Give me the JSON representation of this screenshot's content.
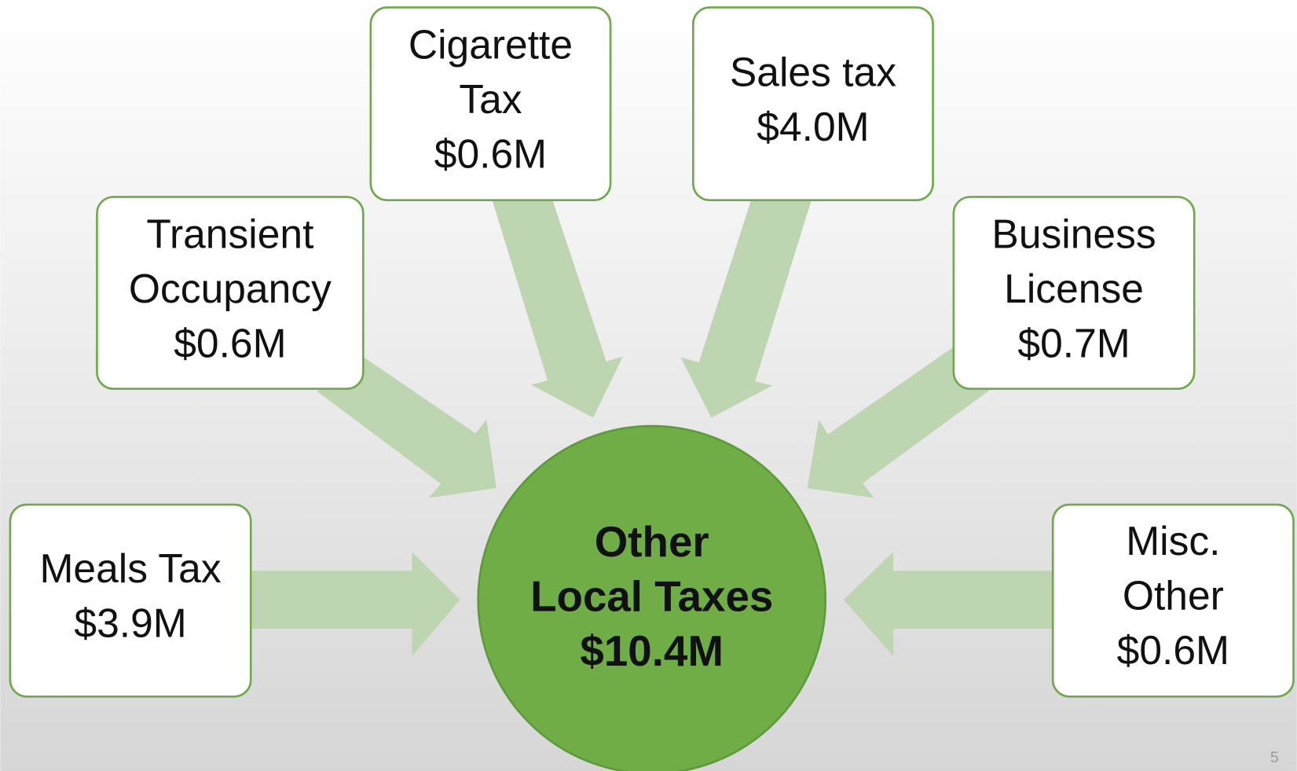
{
  "nodes": [
    {
      "lines": [
        "Meals Tax"
      ],
      "amount": "$3.9M"
    },
    {
      "lines": [
        "Transient",
        "Occupancy"
      ],
      "amount": "$0.6M"
    },
    {
      "lines": [
        "Cigarette",
        "Tax"
      ],
      "amount": "$0.6M"
    },
    {
      "lines": [
        "Sales tax"
      ],
      "amount": "$4.0M"
    },
    {
      "lines": [
        "Business",
        "License"
      ],
      "amount": "$0.7M"
    },
    {
      "lines": [
        "Misc.",
        "Other"
      ],
      "amount": "$0.6M"
    }
  ],
  "center": {
    "lines": [
      "Other",
      "Local Taxes"
    ],
    "amount": "$10.4M"
  },
  "page_number": "5"
}
